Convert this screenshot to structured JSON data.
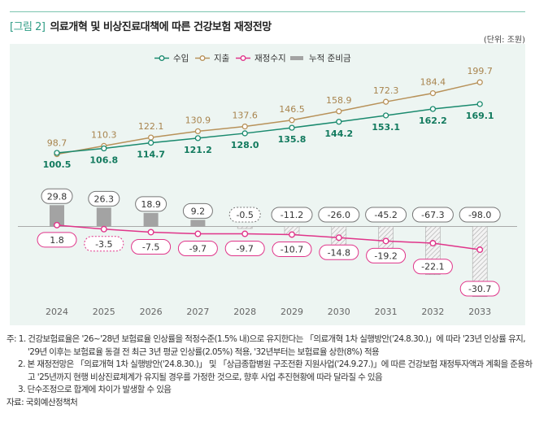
{
  "header": {
    "figure_label": "[그림 2]",
    "title": "의료개혁 및 비상진료대책에 따른 건강보험 재정전망",
    "unit": "(단위: 조원)"
  },
  "chart_data": {
    "type": "line",
    "categories": [
      "2024",
      "2025",
      "2026",
      "2027",
      "2028",
      "2029",
      "2030",
      "2031",
      "2032",
      "2033"
    ],
    "series": [
      {
        "name": "수입",
        "type": "line",
        "color": "#1a8a6e",
        "values": [
          100.5,
          106.8,
          114.7,
          121.2,
          128.0,
          135.8,
          144.2,
          153.1,
          162.2,
          169.1
        ]
      },
      {
        "name": "지출",
        "type": "line",
        "color": "#b8925a",
        "values": [
          98.7,
          110.3,
          122.1,
          130.9,
          137.6,
          146.5,
          158.9,
          172.3,
          184.4,
          199.7
        ]
      },
      {
        "name": "재정수지",
        "type": "line",
        "color": "#e0358a",
        "values": [
          1.8,
          -3.5,
          -7.5,
          -9.7,
          -9.7,
          -10.7,
          -14.8,
          -19.2,
          -22.1,
          -30.7
        ]
      },
      {
        "name": "누적 준비금",
        "type": "bar",
        "color": "#a3a3a3",
        "values": [
          29.8,
          26.3,
          18.9,
          9.2,
          -0.5,
          -11.2,
          -26.0,
          -45.2,
          -67.3,
          -98.0
        ]
      }
    ],
    "legend_position": "top",
    "grid": false
  },
  "notes": [
    "주: 1. 건강보험료율은 '26~'28년 보험료율 인상률을 적정수준(1.5% 내)으로 유지한다는 「의료개혁 1차 실행방안('24.8.30.)」에 따라 '23년 인상률 유지, '29년 이후는 보험료율 동결 전 최근 3년 평균 인상률(2.05%) 적용, '32년부터는 보험료율 상한(8%) 적용",
    "2. 본 재정전망은 「의료개혁 1차 실행방안('24.8.30.)」 및 「상급종합병원 구조전환 지원사업('24.9.27.)」에 따른 건강보험 재정투자액과 계획을 준용하고 '25년까지 현행 비상진료체계가 유지될 경우를 가정한 것으로, 향후 사업 추진현황에 따라 달라질 수 있음",
    "3. 단수조정으로 합계에 차이가 발생할 수 있음"
  ],
  "source": "자료: 국회예산정책처"
}
